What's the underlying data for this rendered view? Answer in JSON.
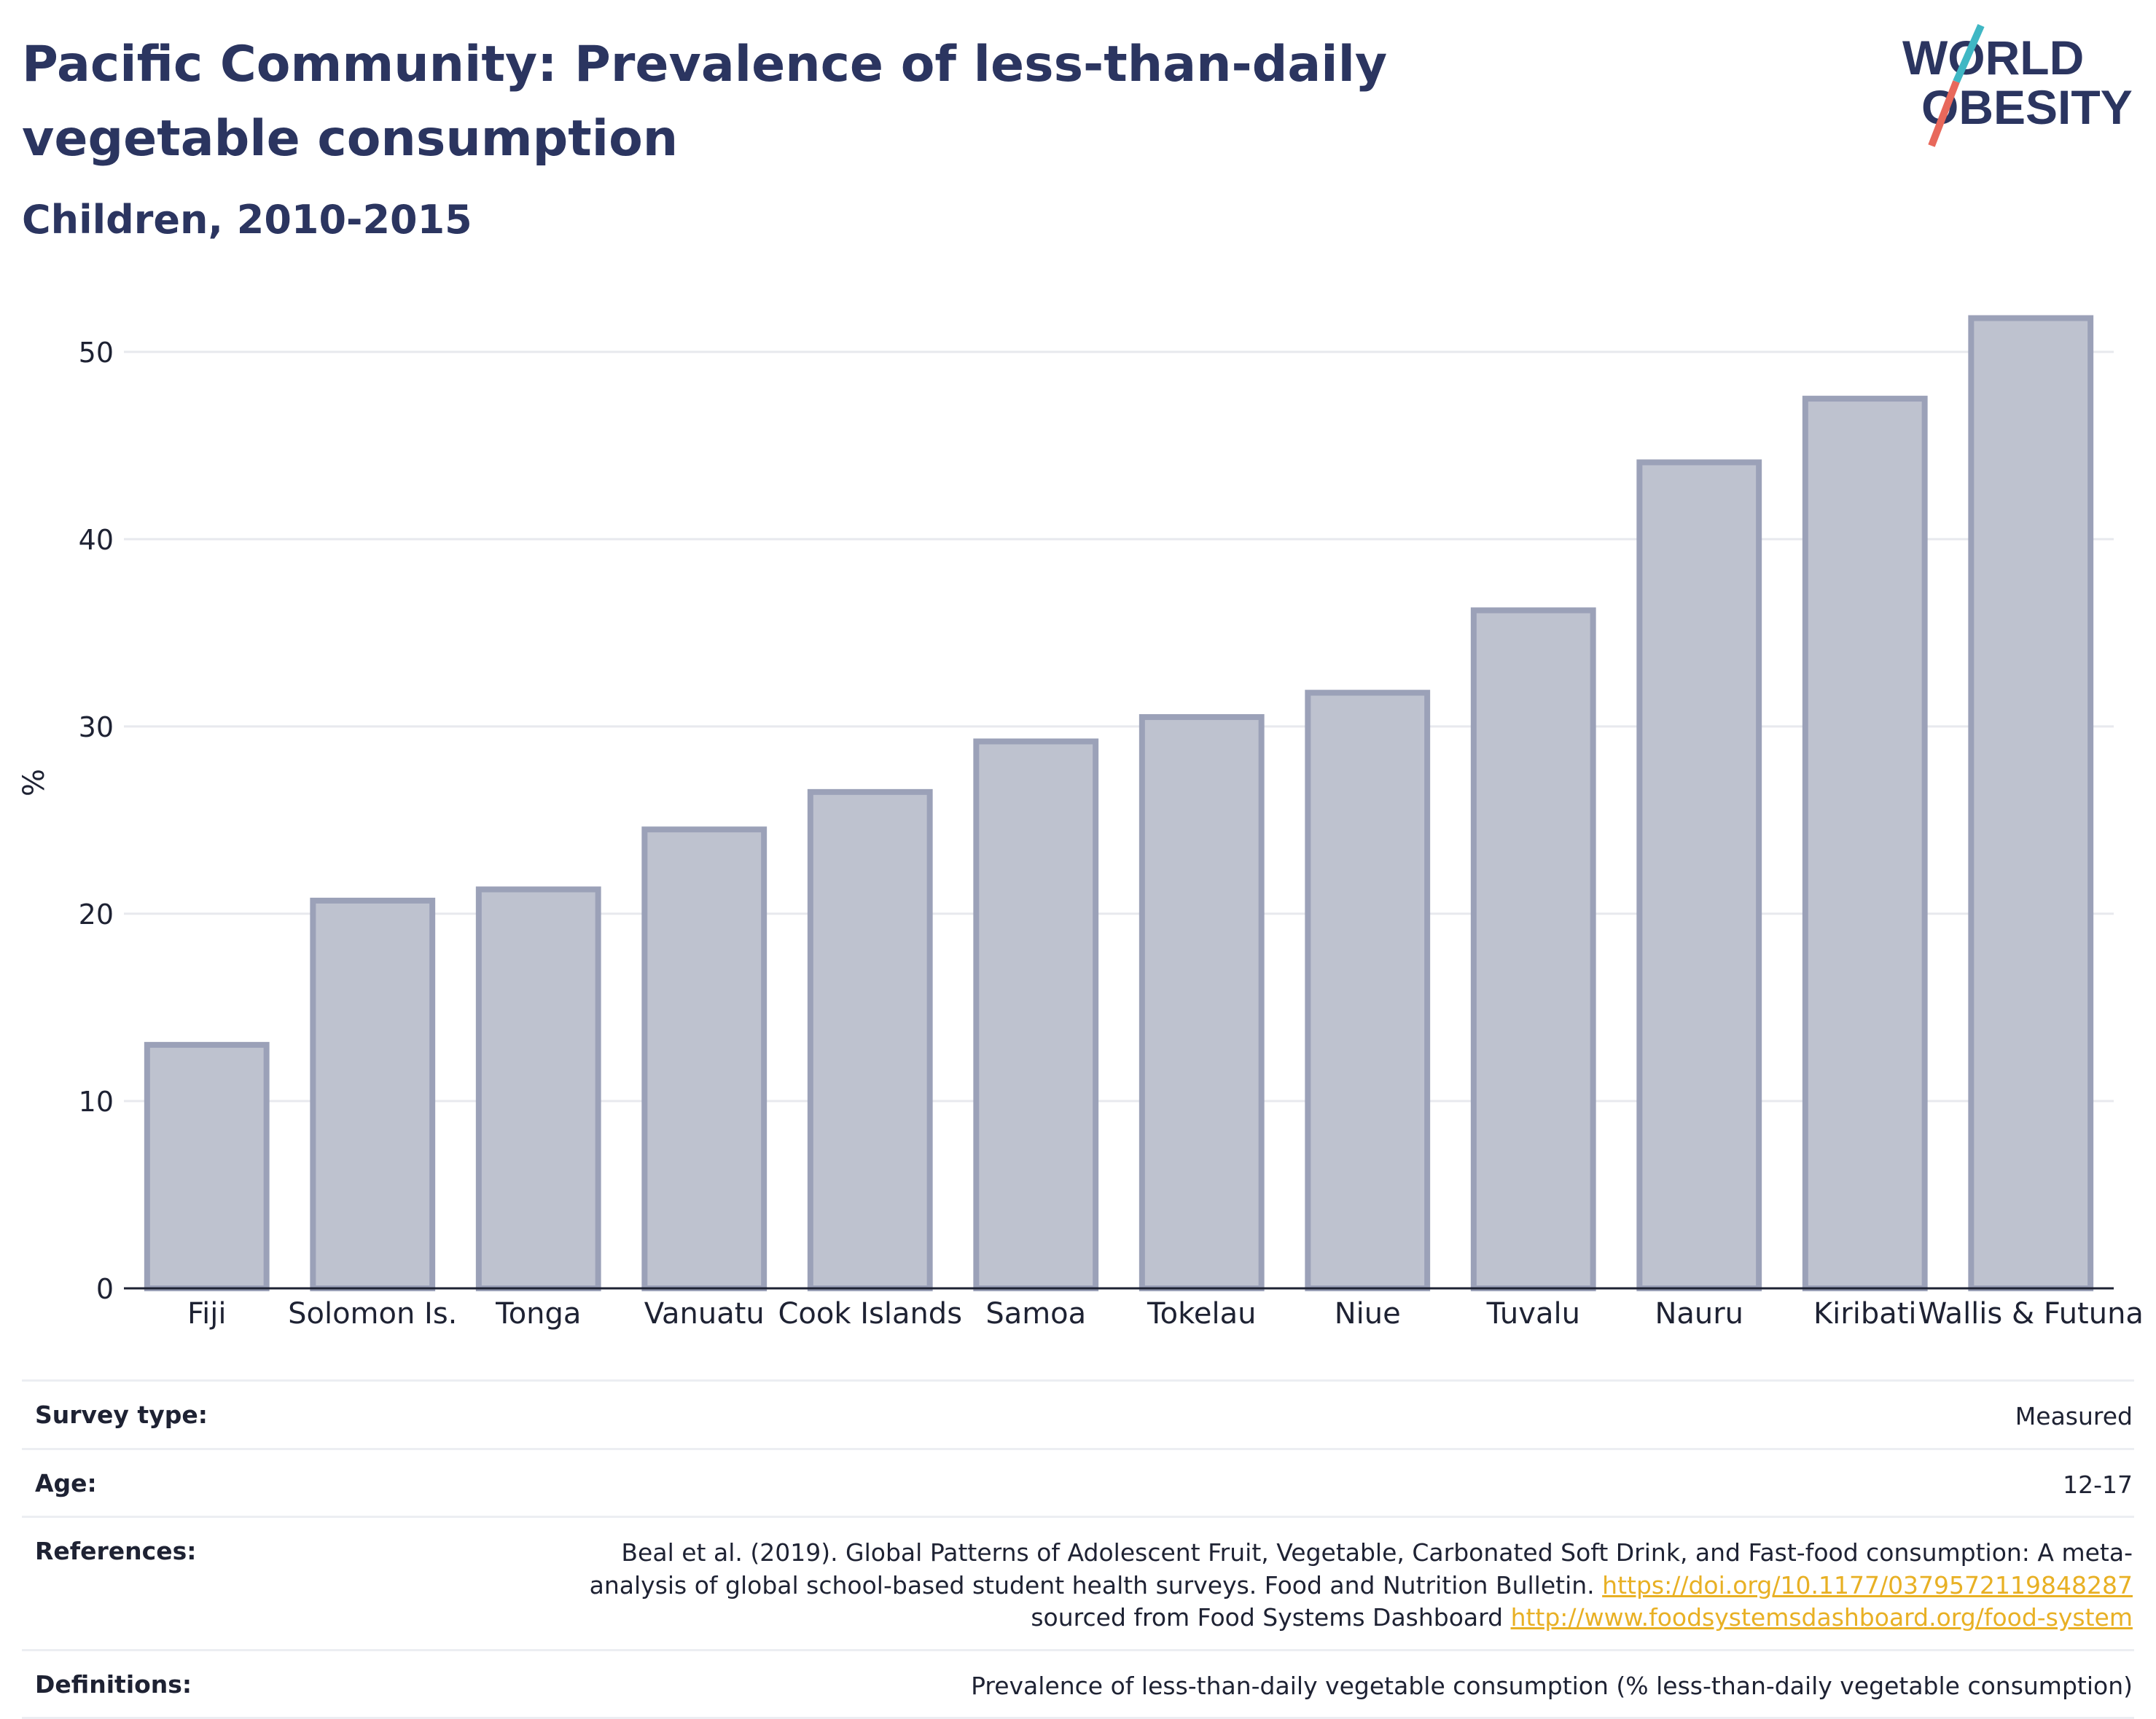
{
  "header": {
    "title": "Pacific Community: Prevalence of less-than-daily vegetable consumption",
    "subtitle": "Children, 2010-2015"
  },
  "logo": {
    "line1": "WORLD",
    "line2": "OBESITY",
    "accent_colors": [
      "#3fb7c4",
      "#e8685b"
    ]
  },
  "colors": {
    "bar_fill": "#bec2cf",
    "bar_stroke": "#9ba1b8",
    "title": "#2b3560",
    "link": "#e8b024"
  },
  "chart_data": {
    "type": "bar",
    "title": "Pacific Community: Prevalence of less-than-daily vegetable consumption",
    "subtitle": "Children, 2010-2015",
    "categories": [
      "Fiji",
      "Solomon Is.",
      "Tonga",
      "Vanuatu",
      "Cook Islands",
      "Samoa",
      "Tokelau",
      "Niue",
      "Tuvalu",
      "Nauru",
      "Kiribati",
      "Wallis & Futuna"
    ],
    "values": [
      13.0,
      20.7,
      21.3,
      24.5,
      26.5,
      29.2,
      30.5,
      31.8,
      36.2,
      44.1,
      47.5,
      51.8
    ],
    "xlabel": "",
    "ylabel": "%",
    "ylim": [
      0,
      54
    ],
    "yticks": [
      0,
      10,
      20,
      30,
      40,
      50
    ],
    "grid": true,
    "legend": "none"
  },
  "meta": {
    "survey_type": {
      "label": "Survey type:",
      "value": "Measured"
    },
    "age": {
      "label": "Age:",
      "value": "12-17"
    },
    "references": {
      "label": "References:",
      "text1": "Beal et al. (2019). Global Patterns of Adolescent Fruit, Vegetable, Carbonated Soft Drink, and Fast-food consumption: A meta-analysis of global school-based student health surveys. Food and Nutrition Bulletin. ",
      "link1": "https://doi.org/10.1177/0379572119848287",
      "text2": " sourced from Food Systems Dashboard ",
      "link2": "http://www.foodsystemsdashboard.org/food-system"
    },
    "definitions": {
      "label": "Definitions:",
      "value": "Prevalence of less-than-daily vegetable consumption (% less-than-daily vegetable consumption)"
    }
  }
}
